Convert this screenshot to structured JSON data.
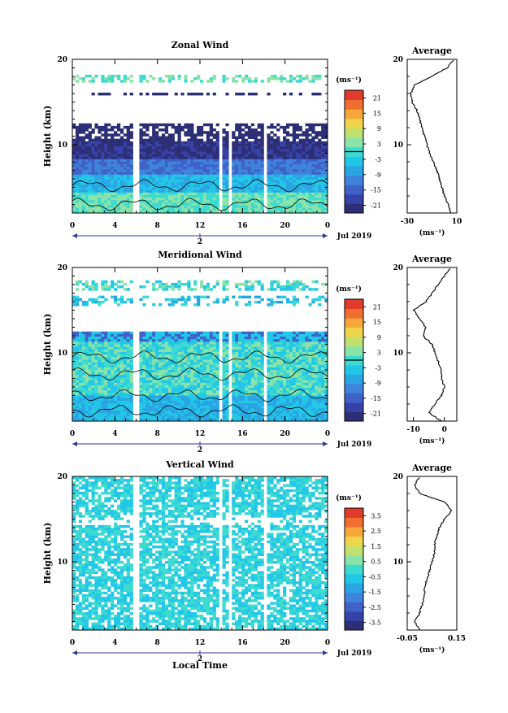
{
  "figure": {
    "xlabel": "Local Time",
    "day_label": "2",
    "month_label": "Jul 2019",
    "height_label": "Height (km)",
    "unit_label": "(ms⁻¹)",
    "avg_title": "Average",
    "height_ticks": [
      20,
      10
    ],
    "time_ticks": [
      0,
      4,
      8,
      12,
      16,
      20,
      0
    ]
  },
  "chart_data": [
    {
      "type": "heatmap",
      "title": "Zonal Wind",
      "xlabel": "Local Time",
      "ylabel": "Height (km)",
      "xlim": [
        0,
        24
      ],
      "ylim": [
        2,
        20
      ],
      "colorbar": {
        "label": "(ms⁻¹)",
        "ticks": [
          "21",
          "15",
          "9",
          "3",
          "-3",
          "-9",
          "-15",
          "-21"
        ],
        "range": [
          -24,
          24
        ],
        "zero_line_value": 0
      },
      "profile": {
        "title": "Average",
        "xlabel": "(ms⁻¹)",
        "xlim": [
          -30,
          10
        ],
        "xticks": [
          "-30",
          "10"
        ],
        "yticks": [
          "20",
          "10"
        ],
        "heights": [
          2,
          3,
          4,
          5,
          6,
          7,
          8,
          9,
          10,
          11,
          12,
          13,
          14,
          15,
          16,
          17,
          18,
          19,
          20
        ],
        "values": [
          5,
          3,
          0,
          -2,
          -4,
          -6,
          -9,
          -12,
          -14,
          -16,
          -18,
          -20,
          -22,
          -26,
          -27,
          -24,
          -10,
          2,
          8
        ]
      }
    },
    {
      "type": "heatmap",
      "title": "Meridional Wind",
      "xlabel": "Local Time",
      "ylabel": "Height (km)",
      "xlim": [
        0,
        24
      ],
      "ylim": [
        2,
        20
      ],
      "colorbar": {
        "label": "(ms⁻¹)",
        "ticks": [
          "21",
          "15",
          "9",
          "3",
          "-3",
          "-9",
          "-15",
          "-21"
        ],
        "range": [
          -24,
          24
        ],
        "zero_line_value": 0
      },
      "profile": {
        "title": "Average",
        "xlabel": "(ms⁻¹)",
        "xlim": [
          -12,
          4
        ],
        "xticks": [
          "-10",
          "0"
        ],
        "yticks": [
          "20",
          "10"
        ],
        "heights": [
          2,
          3,
          4,
          5,
          6,
          7,
          8,
          9,
          10,
          11,
          12,
          13,
          14,
          15,
          16,
          17,
          18,
          19,
          20
        ],
        "values": [
          -1,
          -5,
          -3,
          -1,
          0,
          -1,
          -1,
          -2,
          -3,
          -4,
          -7,
          -6,
          -8,
          -10,
          -6,
          -4,
          -2,
          0,
          2
        ]
      }
    },
    {
      "type": "heatmap",
      "title": "Vertical Wind",
      "xlabel": "Local Time",
      "ylabel": "Height (km)",
      "xlim": [
        0,
        24
      ],
      "ylim": [
        2,
        20
      ],
      "colorbar": {
        "label": "(ms⁻¹)",
        "ticks": [
          "3.5",
          "2.5",
          "1.5",
          "0.5",
          "-0.5",
          "-1.5",
          "-2.5",
          "-3.5"
        ],
        "range": [
          -4,
          4
        ]
      },
      "profile": {
        "title": "Average",
        "xlabel": "(ms⁻¹)",
        "xlim": [
          -0.05,
          0.15
        ],
        "xticks": [
          "-0.05",
          "0.15"
        ],
        "yticks": [
          "20",
          "10"
        ],
        "heights": [
          2,
          3,
          4,
          5,
          6,
          7,
          8,
          9,
          10,
          11,
          12,
          13,
          14,
          15,
          16,
          17,
          18,
          19,
          20
        ],
        "values": [
          0.0,
          -0.02,
          0.0,
          0.01,
          0.02,
          0.02,
          0.03,
          0.04,
          0.05,
          0.06,
          0.06,
          0.07,
          0.08,
          0.1,
          0.13,
          0.1,
          0.0,
          -0.02,
          0.0
        ]
      }
    }
  ]
}
